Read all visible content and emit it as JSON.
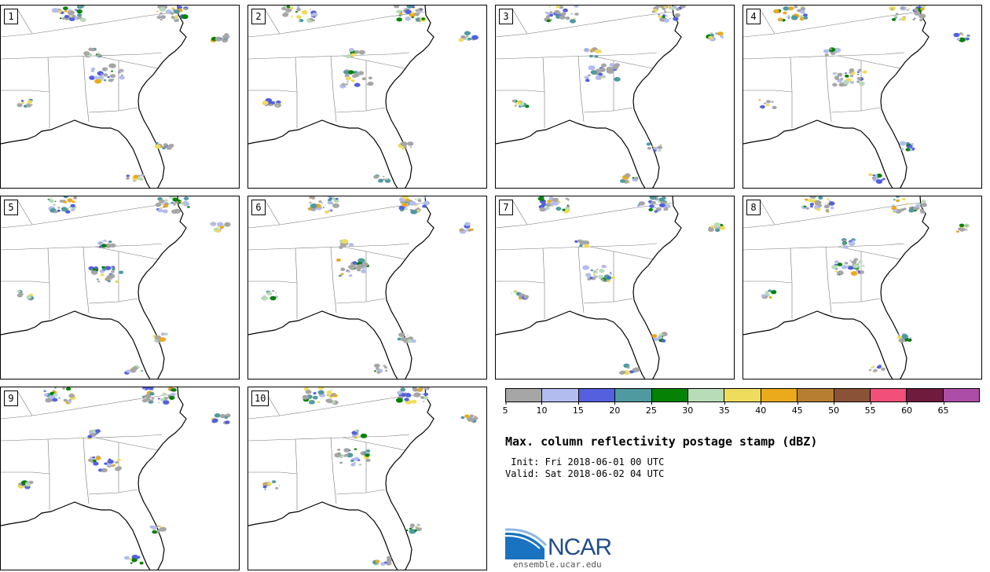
{
  "panels": [
    {
      "label": "1"
    },
    {
      "label": "2"
    },
    {
      "label": "3"
    },
    {
      "label": "4"
    },
    {
      "label": "5"
    },
    {
      "label": "6"
    },
    {
      "label": "7"
    },
    {
      "label": "8"
    },
    {
      "label": "9"
    },
    {
      "label": "10"
    }
  ],
  "colorbar": {
    "colors": [
      "#a6a6a6",
      "#b3bcee",
      "#5460dd",
      "#4f9aa1",
      "#058205",
      "#b8dbb8",
      "#f0dc5c",
      "#eaaa1c",
      "#b77e32",
      "#8a5338",
      "#f24f7a",
      "#6f1b3d",
      "#ac4da8"
    ],
    "ticks": [
      "5",
      "10",
      "15",
      "20",
      "25",
      "30",
      "35",
      "40",
      "45",
      "50",
      "55",
      "60",
      "65"
    ]
  },
  "title": "Max. column reflectivity postage stamp (dBZ)",
  "init": " Init: Fri 2018-06-01 00 UTC",
  "valid": "Valid: Sat 2018-06-02 04 UTC",
  "logo": {
    "text": "NCAR",
    "url": "ensemble.ucar.edu",
    "color": "#1f4e8c"
  }
}
